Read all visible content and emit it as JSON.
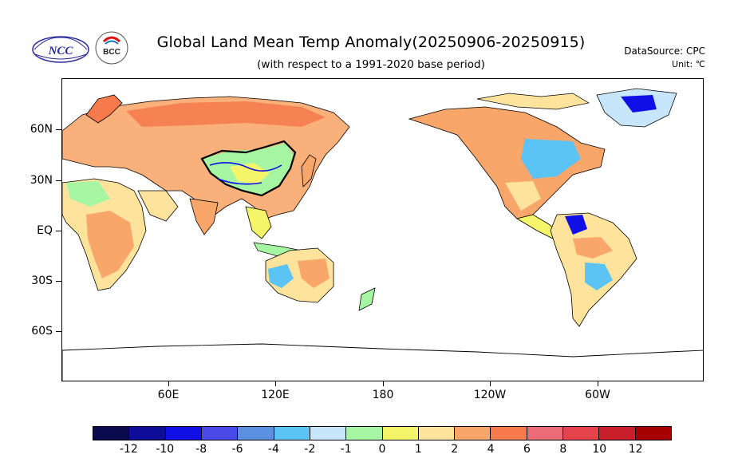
{
  "header": {
    "title": "Global Land Mean Temp Anomaly(20250906-20250915)",
    "subtitle": "(with respect to a 1991-2020 base period)",
    "datasource": "DataSource:  CPC",
    "unit": "Unit:  ℃"
  },
  "logos": {
    "ncc_text": "NCC",
    "bcc_text": "BCC"
  },
  "axes": {
    "lat_labels": [
      "60N",
      "30N",
      "EQ",
      "30S",
      "60S"
    ],
    "lon_labels": [
      "60E",
      "120E",
      "180",
      "120W",
      "60W"
    ]
  },
  "legend": {
    "labels": [
      "-12",
      "-10",
      "-8",
      "-6",
      "-4",
      "-2",
      "-1",
      "0",
      "1",
      "2",
      "4",
      "6",
      "8",
      "10",
      "12"
    ],
    "colors": [
      "#0a0a4f",
      "#0d0d9a",
      "#1010e6",
      "#4a4ae8",
      "#5b8fdf",
      "#5cc3f5",
      "#c8e6fb",
      "#a6f5a3",
      "#f5f56a",
      "#fde39b",
      "#f9a66a",
      "#f67a4c",
      "#ec6b79",
      "#e4434b",
      "#c91f2b",
      "#a60000"
    ]
  },
  "colors": {
    "land_warm": "#f9a66a",
    "land_neutral": "#f5f56a",
    "land_cool": "#5cc3f5",
    "china_border": "#000000",
    "rivers": "#1010e6"
  }
}
